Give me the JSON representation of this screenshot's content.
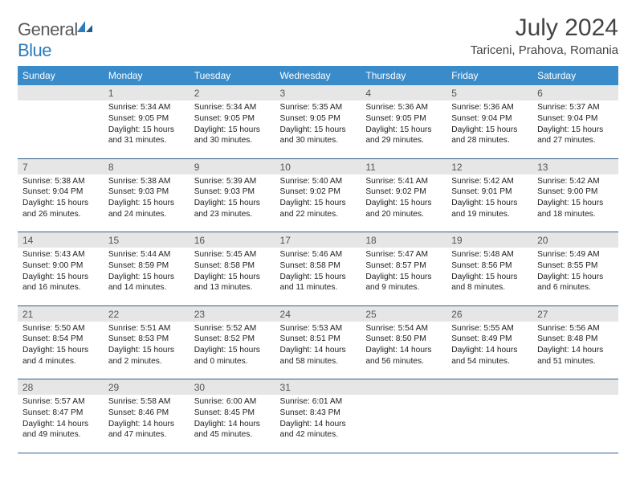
{
  "brand": {
    "part1": "General",
    "part2": "Blue"
  },
  "title": "July 2024",
  "location": "Tariceni, Prahova, Romania",
  "colors": {
    "header_bg": "#3a8bc9",
    "header_text": "#ffffff",
    "daynum_bg": "#e6e6e6",
    "border": "#2f5d8a",
    "logo_gray": "#5a5a5a",
    "logo_blue": "#2b7bbd"
  },
  "weekdays": [
    "Sunday",
    "Monday",
    "Tuesday",
    "Wednesday",
    "Thursday",
    "Friday",
    "Saturday"
  ],
  "start_offset": 1,
  "days": [
    {
      "n": 1,
      "sr": "5:34 AM",
      "ss": "9:05 PM",
      "dl": "15 hours and 31 minutes."
    },
    {
      "n": 2,
      "sr": "5:34 AM",
      "ss": "9:05 PM",
      "dl": "15 hours and 30 minutes."
    },
    {
      "n": 3,
      "sr": "5:35 AM",
      "ss": "9:05 PM",
      "dl": "15 hours and 30 minutes."
    },
    {
      "n": 4,
      "sr": "5:36 AM",
      "ss": "9:05 PM",
      "dl": "15 hours and 29 minutes."
    },
    {
      "n": 5,
      "sr": "5:36 AM",
      "ss": "9:04 PM",
      "dl": "15 hours and 28 minutes."
    },
    {
      "n": 6,
      "sr": "5:37 AM",
      "ss": "9:04 PM",
      "dl": "15 hours and 27 minutes."
    },
    {
      "n": 7,
      "sr": "5:38 AM",
      "ss": "9:04 PM",
      "dl": "15 hours and 26 minutes."
    },
    {
      "n": 8,
      "sr": "5:38 AM",
      "ss": "9:03 PM",
      "dl": "15 hours and 24 minutes."
    },
    {
      "n": 9,
      "sr": "5:39 AM",
      "ss": "9:03 PM",
      "dl": "15 hours and 23 minutes."
    },
    {
      "n": 10,
      "sr": "5:40 AM",
      "ss": "9:02 PM",
      "dl": "15 hours and 22 minutes."
    },
    {
      "n": 11,
      "sr": "5:41 AM",
      "ss": "9:02 PM",
      "dl": "15 hours and 20 minutes."
    },
    {
      "n": 12,
      "sr": "5:42 AM",
      "ss": "9:01 PM",
      "dl": "15 hours and 19 minutes."
    },
    {
      "n": 13,
      "sr": "5:42 AM",
      "ss": "9:00 PM",
      "dl": "15 hours and 18 minutes."
    },
    {
      "n": 14,
      "sr": "5:43 AM",
      "ss": "9:00 PM",
      "dl": "15 hours and 16 minutes."
    },
    {
      "n": 15,
      "sr": "5:44 AM",
      "ss": "8:59 PM",
      "dl": "15 hours and 14 minutes."
    },
    {
      "n": 16,
      "sr": "5:45 AM",
      "ss": "8:58 PM",
      "dl": "15 hours and 13 minutes."
    },
    {
      "n": 17,
      "sr": "5:46 AM",
      "ss": "8:58 PM",
      "dl": "15 hours and 11 minutes."
    },
    {
      "n": 18,
      "sr": "5:47 AM",
      "ss": "8:57 PM",
      "dl": "15 hours and 9 minutes."
    },
    {
      "n": 19,
      "sr": "5:48 AM",
      "ss": "8:56 PM",
      "dl": "15 hours and 8 minutes."
    },
    {
      "n": 20,
      "sr": "5:49 AM",
      "ss": "8:55 PM",
      "dl": "15 hours and 6 minutes."
    },
    {
      "n": 21,
      "sr": "5:50 AM",
      "ss": "8:54 PM",
      "dl": "15 hours and 4 minutes."
    },
    {
      "n": 22,
      "sr": "5:51 AM",
      "ss": "8:53 PM",
      "dl": "15 hours and 2 minutes."
    },
    {
      "n": 23,
      "sr": "5:52 AM",
      "ss": "8:52 PM",
      "dl": "15 hours and 0 minutes."
    },
    {
      "n": 24,
      "sr": "5:53 AM",
      "ss": "8:51 PM",
      "dl": "14 hours and 58 minutes."
    },
    {
      "n": 25,
      "sr": "5:54 AM",
      "ss": "8:50 PM",
      "dl": "14 hours and 56 minutes."
    },
    {
      "n": 26,
      "sr": "5:55 AM",
      "ss": "8:49 PM",
      "dl": "14 hours and 54 minutes."
    },
    {
      "n": 27,
      "sr": "5:56 AM",
      "ss": "8:48 PM",
      "dl": "14 hours and 51 minutes."
    },
    {
      "n": 28,
      "sr": "5:57 AM",
      "ss": "8:47 PM",
      "dl": "14 hours and 49 minutes."
    },
    {
      "n": 29,
      "sr": "5:58 AM",
      "ss": "8:46 PM",
      "dl": "14 hours and 47 minutes."
    },
    {
      "n": 30,
      "sr": "6:00 AM",
      "ss": "8:45 PM",
      "dl": "14 hours and 45 minutes."
    },
    {
      "n": 31,
      "sr": "6:01 AM",
      "ss": "8:43 PM",
      "dl": "14 hours and 42 minutes."
    }
  ],
  "labels": {
    "sunrise": "Sunrise:",
    "sunset": "Sunset:",
    "daylight": "Daylight:"
  }
}
